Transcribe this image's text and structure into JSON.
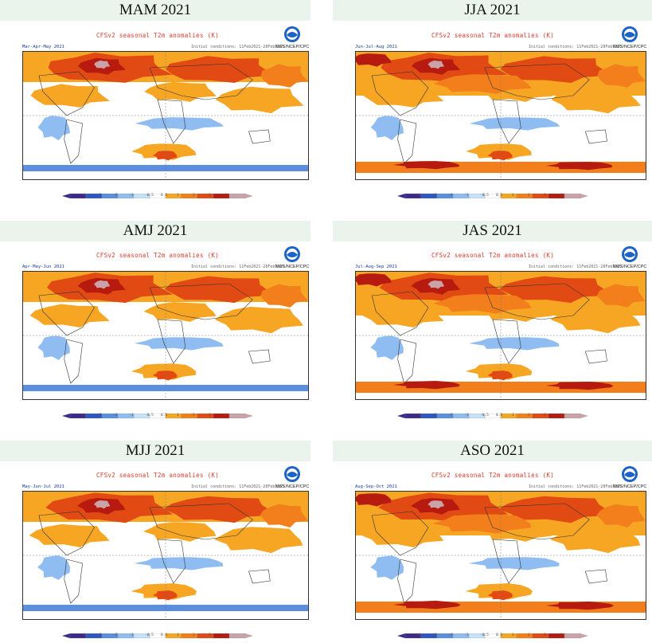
{
  "panels": [
    {
      "season": "MAM 2021",
      "label": "Mar-Apr-May 2021",
      "palette": "mid"
    },
    {
      "season": "JJA 2021",
      "label": "Jun-Jul-Aug 2021",
      "palette": "hot"
    },
    {
      "season": "AMJ 2021",
      "label": "Apr-May-Jun 2021",
      "palette": "mid"
    },
    {
      "season": "JAS 2021",
      "label": "Jul-Aug-Sep 2021",
      "palette": "hot"
    },
    {
      "season": "MJJ 2021",
      "label": "May-Jun-Jul 2021",
      "palette": "mid"
    },
    {
      "season": "ASO 2021",
      "label": "Aug-Sep-Oct 2021",
      "palette": "hot"
    }
  ],
  "map_title": "CFSv2 seasonal T2m anomalies (K)",
  "ic_text": "Initial conditions: 11Feb2021-28Feb2021",
  "logo_text": "NWS/NCEP/CPC",
  "colorbar_ticks": [
    "-4",
    "-3",
    "-2",
    "-1",
    "-0.5",
    "0.5",
    "1",
    "2",
    "3",
    "4"
  ],
  "colors": {
    "title_band": "#eaf3ec",
    "map_title": "#e03a2c",
    "season_label": "#1a3a9c"
  }
}
